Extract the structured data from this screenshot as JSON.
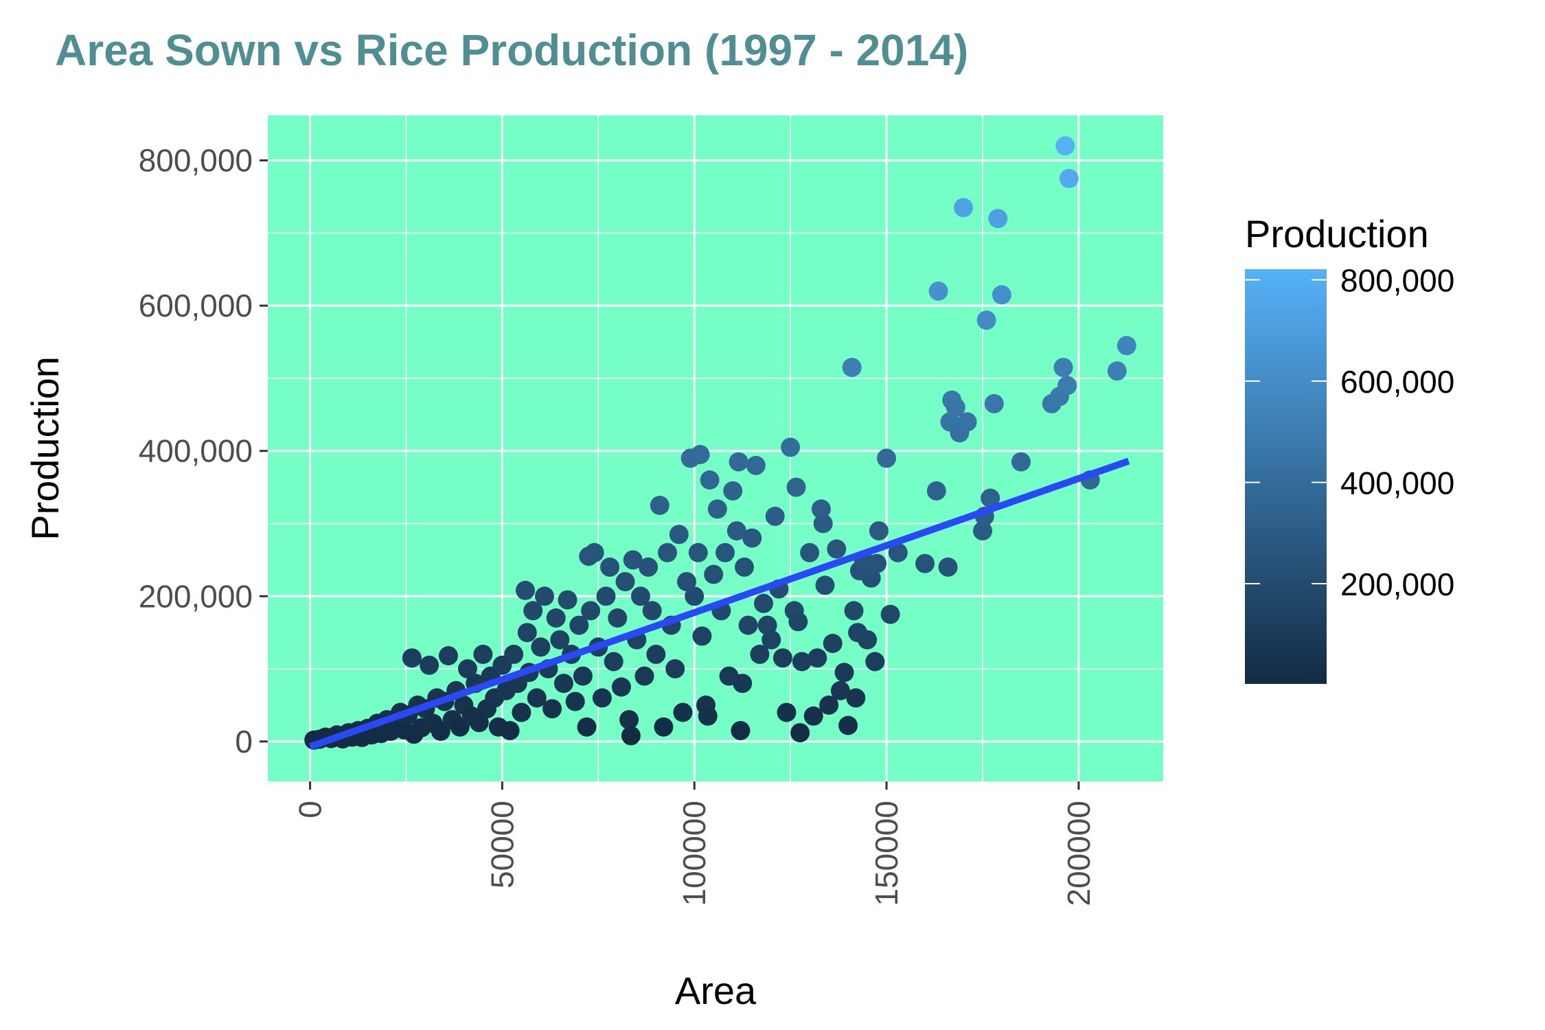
{
  "chart_data": {
    "type": "scatter",
    "title": "Area Sown vs Rice Production (1997 - 2014)",
    "xlabel": "Area",
    "ylabel": "Production",
    "xlim": [
      -11000,
      222000
    ],
    "ylim": [
      -55000,
      862000
    ],
    "x_ticks": [
      0,
      50000,
      100000,
      150000,
      200000
    ],
    "x_tick_labels": [
      "0",
      "50000",
      "100000",
      "150000",
      "200000"
    ],
    "y_ticks": [
      0,
      200000,
      400000,
      600000,
      800000
    ],
    "y_tick_labels": [
      "0",
      "200,000",
      "400,000",
      "600,000",
      "800,000"
    ],
    "grid": true,
    "panel_background": "#75ffc7",
    "title_color": "#4f8f94",
    "trend_color": "#2849f5",
    "legend": {
      "title": "Production",
      "position": "right",
      "breaks": [
        200000,
        400000,
        600000,
        800000
      ],
      "labels": [
        "200,000",
        "400,000",
        "600,000",
        "800,000"
      ],
      "range": [
        2000,
        821000
      ],
      "color_low": "#132b43",
      "color_high": "#56b1f7"
    },
    "trend_line": {
      "x": [
        0,
        213000
      ],
      "y": [
        -7000,
        386000
      ]
    },
    "series": [
      {
        "points": [
          [
            1000,
            2000
          ],
          [
            2500,
            3000
          ],
          [
            4000,
            6000
          ],
          [
            5500,
            4000
          ],
          [
            7000,
            9000
          ],
          [
            8500,
            3500
          ],
          [
            10000,
            12000
          ],
          [
            11000,
            6000
          ],
          [
            12500,
            15000
          ],
          [
            13500,
            5500
          ],
          [
            15000,
            18000
          ],
          [
            16000,
            9000
          ],
          [
            17500,
            25000
          ],
          [
            18500,
            11000
          ],
          [
            20000,
            30000
          ],
          [
            21000,
            14000
          ],
          [
            22000,
            21000
          ],
          [
            23500,
            40000
          ],
          [
            24500,
            16000
          ],
          [
            25500,
            36000
          ],
          [
            26500,
            115000
          ],
          [
            27000,
            10000
          ],
          [
            28000,
            50000
          ],
          [
            29000,
            19000
          ],
          [
            30000,
            45000
          ],
          [
            31000,
            105000
          ],
          [
            32000,
            25000
          ],
          [
            33000,
            60000
          ],
          [
            34000,
            14000
          ],
          [
            35000,
            55000
          ],
          [
            36000,
            118000
          ],
          [
            37000,
            30000
          ],
          [
            38000,
            70000
          ],
          [
            39000,
            20000
          ],
          [
            40000,
            50000
          ],
          [
            41000,
            100000
          ],
          [
            42000,
            35000
          ],
          [
            43000,
            80000
          ],
          [
            44000,
            26000
          ],
          [
            45000,
            120000
          ],
          [
            46000,
            45000
          ],
          [
            47000,
            90000
          ],
          [
            48000,
            60000
          ],
          [
            49000,
            20000
          ],
          [
            50000,
            105000
          ],
          [
            51000,
            70000
          ],
          [
            52000,
            15000
          ],
          [
            53000,
            120000
          ],
          [
            54000,
            80000
          ],
          [
            55000,
            40000
          ],
          [
            56000,
            208000
          ],
          [
            56500,
            150000
          ],
          [
            57000,
            95000
          ],
          [
            58000,
            180000
          ],
          [
            59000,
            60000
          ],
          [
            60000,
            130000
          ],
          [
            61000,
            200000
          ],
          [
            62000,
            100000
          ],
          [
            63000,
            45000
          ],
          [
            64000,
            170000
          ],
          [
            65000,
            140000
          ],
          [
            66000,
            80000
          ],
          [
            67000,
            195000
          ],
          [
            68000,
            120000
          ],
          [
            69000,
            55000
          ],
          [
            70000,
            160000
          ],
          [
            71000,
            90000
          ],
          [
            72000,
            20000
          ],
          [
            72500,
            255000
          ],
          [
            73000,
            180000
          ],
          [
            74000,
            260000
          ],
          [
            75000,
            130000
          ],
          [
            76000,
            60000
          ],
          [
            77000,
            200000
          ],
          [
            78000,
            240000
          ],
          [
            79000,
            110000
          ],
          [
            80000,
            170000
          ],
          [
            81000,
            75000
          ],
          [
            82000,
            220000
          ],
          [
            83000,
            30000
          ],
          [
            83500,
            8000
          ],
          [
            84000,
            250000
          ],
          [
            85000,
            140000
          ],
          [
            86000,
            200000
          ],
          [
            87000,
            90000
          ],
          [
            88000,
            240000
          ],
          [
            89000,
            180000
          ],
          [
            90000,
            120000
          ],
          [
            91000,
            325000
          ],
          [
            92000,
            20000
          ],
          [
            93000,
            260000
          ],
          [
            94000,
            160000
          ],
          [
            95000,
            100000
          ],
          [
            96000,
            285000
          ],
          [
            97000,
            40000
          ],
          [
            98000,
            220000
          ],
          [
            99000,
            390000
          ],
          [
            100000,
            200000
          ],
          [
            101000,
            260000
          ],
          [
            101500,
            395000
          ],
          [
            102000,
            145000
          ],
          [
            103000,
            50000
          ],
          [
            103500,
            35000
          ],
          [
            104000,
            360000
          ],
          [
            105000,
            230000
          ],
          [
            106000,
            320000
          ],
          [
            107000,
            180000
          ],
          [
            108000,
            260000
          ],
          [
            109000,
            90000
          ],
          [
            110000,
            345000
          ],
          [
            111000,
            290000
          ],
          [
            111500,
            385000
          ],
          [
            112000,
            15000
          ],
          [
            112500,
            80000
          ],
          [
            113000,
            240000
          ],
          [
            114000,
            160000
          ],
          [
            115000,
            280000
          ],
          [
            116000,
            380000
          ],
          [
            117000,
            120000
          ],
          [
            118000,
            190000
          ],
          [
            119000,
            160000
          ],
          [
            120000,
            140000
          ],
          [
            121000,
            310000
          ],
          [
            122000,
            210000
          ],
          [
            123000,
            115000
          ],
          [
            124000,
            40000
          ],
          [
            125000,
            405000
          ],
          [
            126000,
            180000
          ],
          [
            126500,
            350000
          ],
          [
            127000,
            165000
          ],
          [
            127500,
            12000
          ],
          [
            128000,
            110000
          ],
          [
            130000,
            260000
          ],
          [
            131000,
            35000
          ],
          [
            132000,
            115000
          ],
          [
            133000,
            320000
          ],
          [
            133500,
            300000
          ],
          [
            134000,
            215000
          ],
          [
            135000,
            50000
          ],
          [
            136000,
            135000
          ],
          [
            137000,
            265000
          ],
          [
            138000,
            70000
          ],
          [
            139000,
            95000
          ],
          [
            140000,
            22000
          ],
          [
            141000,
            515000
          ],
          [
            141500,
            180000
          ],
          [
            142000,
            60000
          ],
          [
            142500,
            150000
          ],
          [
            143000,
            235000
          ],
          [
            144000,
            250000
          ],
          [
            145000,
            140000
          ],
          [
            146000,
            225000
          ],
          [
            147000,
            110000
          ],
          [
            147500,
            245000
          ],
          [
            148000,
            290000
          ],
          [
            150000,
            390000
          ],
          [
            151000,
            175000
          ],
          [
            153000,
            260000
          ],
          [
            160000,
            245000
          ],
          [
            163000,
            345000
          ],
          [
            163500,
            620000
          ],
          [
            166000,
            240000
          ],
          [
            166500,
            440000
          ],
          [
            167000,
            470000
          ],
          [
            168000,
            460000
          ],
          [
            169000,
            425000
          ],
          [
            170000,
            735000
          ],
          [
            171000,
            440000
          ],
          [
            175000,
            290000
          ],
          [
            175500,
            310000
          ],
          [
            176000,
            580000
          ],
          [
            177000,
            335000
          ],
          [
            178000,
            465000
          ],
          [
            179000,
            720000
          ],
          [
            180000,
            615000
          ],
          [
            185000,
            385000
          ],
          [
            193000,
            465000
          ],
          [
            195000,
            475000
          ],
          [
            196000,
            515000
          ],
          [
            196500,
            820000
          ],
          [
            197000,
            490000
          ],
          [
            197500,
            775000
          ],
          [
            203000,
            360000
          ],
          [
            210000,
            510000
          ],
          [
            212500,
            545000
          ]
        ]
      }
    ]
  }
}
